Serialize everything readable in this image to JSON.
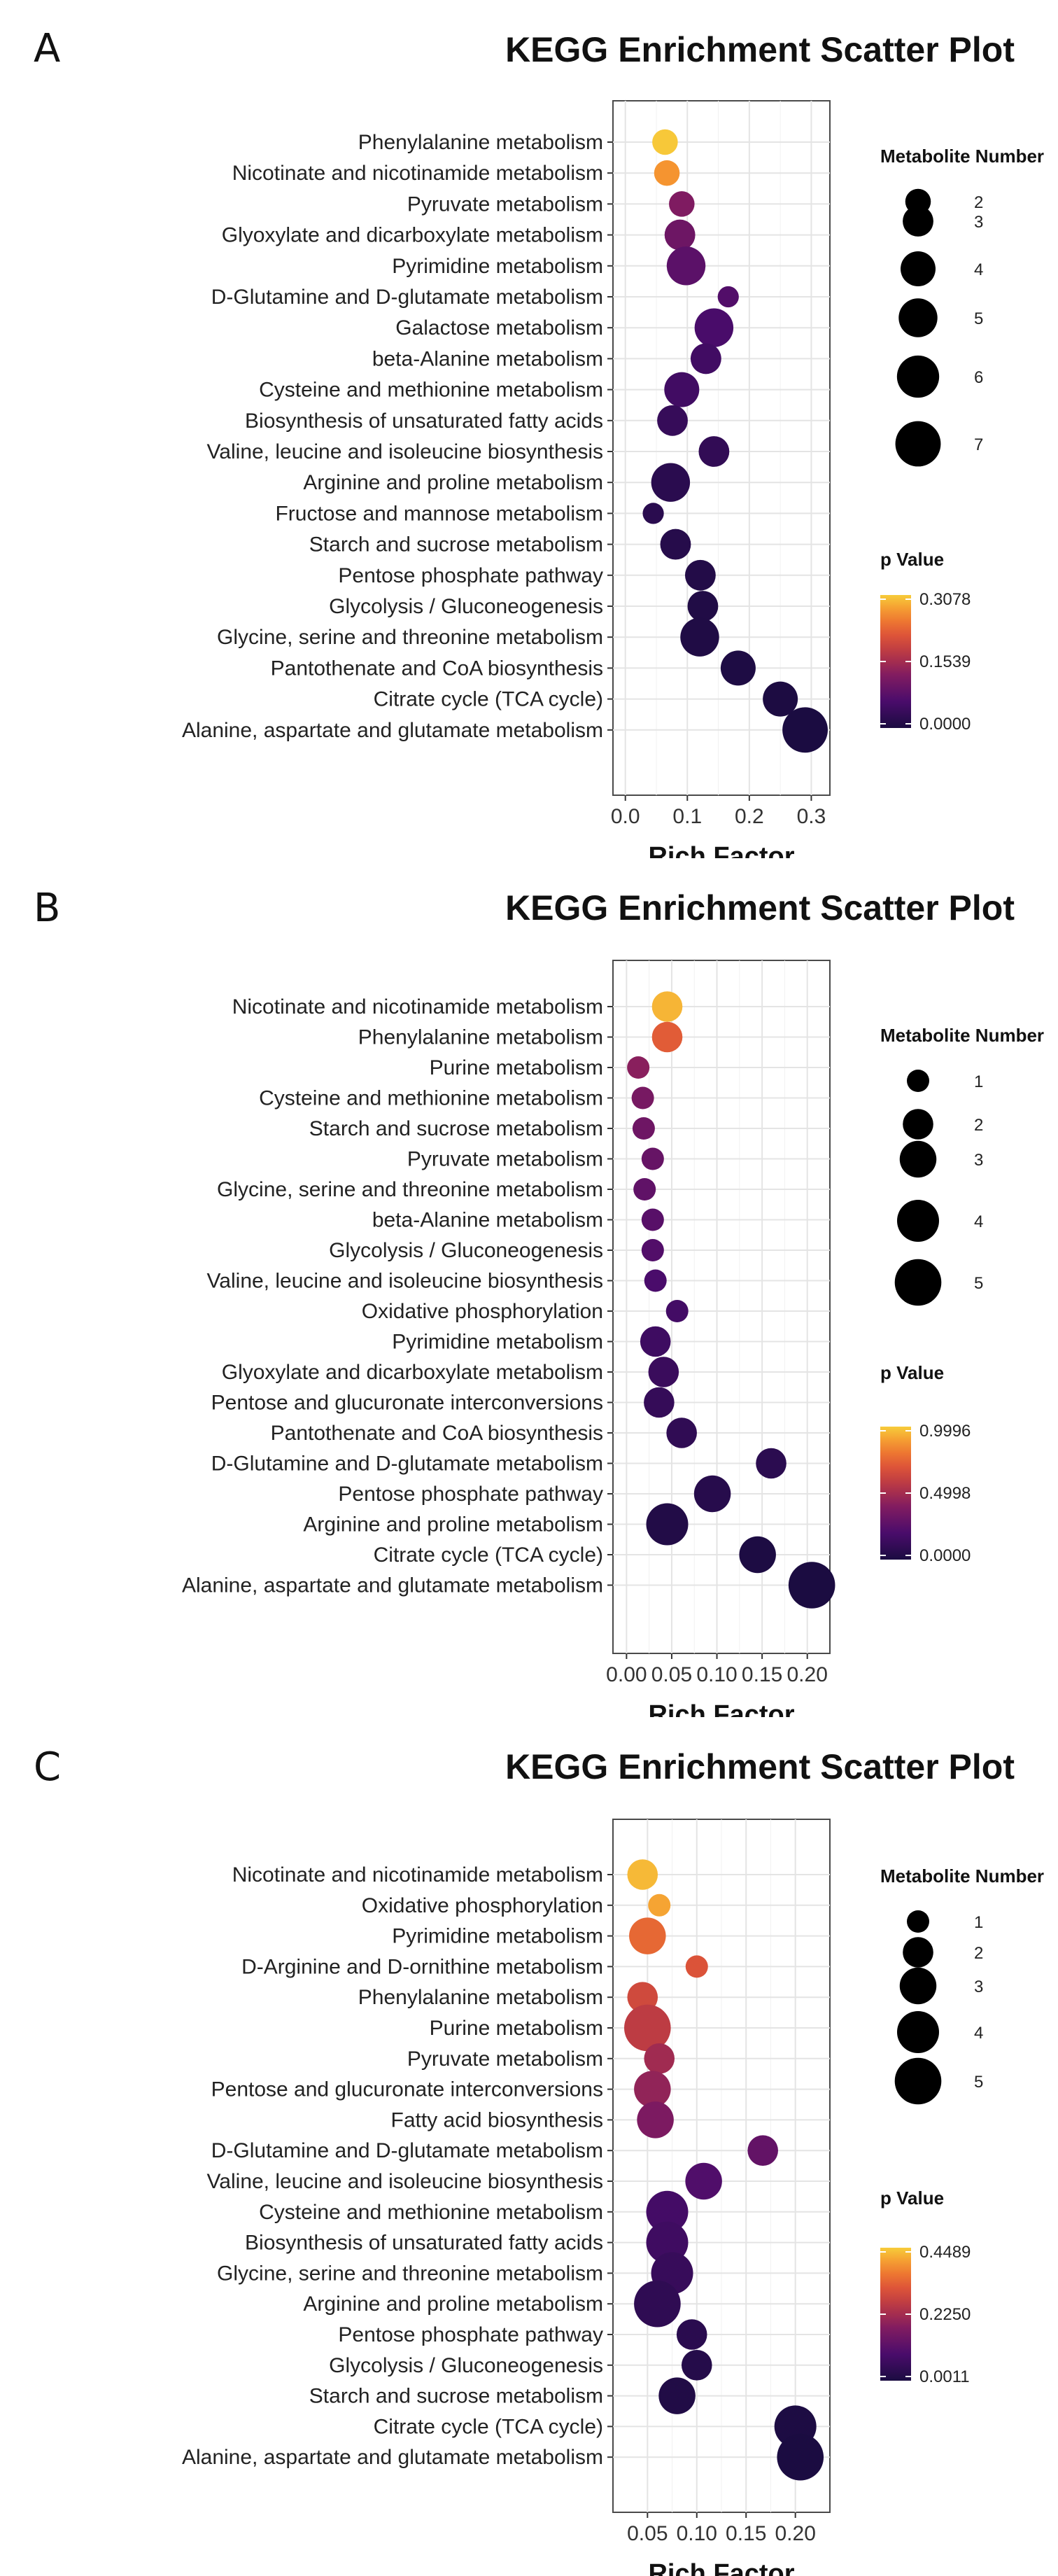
{
  "chart_data": [
    {
      "type": "scatter",
      "panel": "A",
      "title": "KEGG Enrichment Scatter Plot",
      "xlabel": "Rich Factor",
      "ylabel": "",
      "xlim": [
        -0.02,
        0.33
      ],
      "xticks": [
        0.0,
        0.1,
        0.2,
        0.3
      ],
      "xtick_labels": [
        "0.0",
        "0.1",
        "0.2",
        "0.3"
      ],
      "grid": true,
      "size_legend": {
        "title": "Metabolite Number",
        "values": [
          2,
          3,
          4,
          5,
          6,
          7
        ]
      },
      "color_legend": {
        "title": "p Value",
        "min": 0.0,
        "max": 0.3078,
        "tick_labels": [
          "0.3078",
          "0.1539",
          "0.0000"
        ]
      },
      "points": [
        {
          "pathway": "Phenylalanine metabolism",
          "rich_factor": 0.064,
          "count": 2,
          "p": 0.305
        },
        {
          "pathway": "Nicotinate and nicotinamide metabolism",
          "rich_factor": 0.067,
          "count": 2,
          "p": 0.27
        },
        {
          "pathway": "Pyruvate metabolism",
          "rich_factor": 0.091,
          "count": 2,
          "p": 0.12
        },
        {
          "pathway": "Glyoxylate and dicarboxylate metabolism",
          "rich_factor": 0.088,
          "count": 3,
          "p": 0.1
        },
        {
          "pathway": "Pyrimidine metabolism",
          "rich_factor": 0.098,
          "count": 5,
          "p": 0.08
        },
        {
          "pathway": "D-Glutamine and D-glutamate metabolism",
          "rich_factor": 0.166,
          "count": 1.3,
          "p": 0.07
        },
        {
          "pathway": "Galactose metabolism",
          "rich_factor": 0.143,
          "count": 5,
          "p": 0.06
        },
        {
          "pathway": "beta-Alanine metabolism",
          "rich_factor": 0.13,
          "count": 3,
          "p": 0.05
        },
        {
          "pathway": "Cysteine and methionine metabolism",
          "rich_factor": 0.091,
          "count": 4,
          "p": 0.05
        },
        {
          "pathway": "Biosynthesis of unsaturated fatty acids",
          "rich_factor": 0.076,
          "count": 3,
          "p": 0.035
        },
        {
          "pathway": "Valine, leucine and isoleucine biosynthesis",
          "rich_factor": 0.143,
          "count": 3,
          "p": 0.03
        },
        {
          "pathway": "Arginine and proline metabolism",
          "rich_factor": 0.073,
          "count": 5,
          "p": 0.02
        },
        {
          "pathway": "Fructose and mannose metabolism",
          "rich_factor": 0.045,
          "count": 1.3,
          "p": 0.02
        },
        {
          "pathway": "Starch and sucrose metabolism",
          "rich_factor": 0.081,
          "count": 3,
          "p": 0.015
        },
        {
          "pathway": "Pentose phosphate pathway",
          "rich_factor": 0.121,
          "count": 3,
          "p": 0.01
        },
        {
          "pathway": "Glycolysis / Gluconeogenesis",
          "rich_factor": 0.125,
          "count": 3,
          "p": 0.008
        },
        {
          "pathway": "Glycine, serine and threonine metabolism",
          "rich_factor": 0.12,
          "count": 5,
          "p": 0.006
        },
        {
          "pathway": "Pantothenate and CoA biosynthesis",
          "rich_factor": 0.182,
          "count": 4,
          "p": 0.004
        },
        {
          "pathway": "Citrate cycle (TCA cycle)",
          "rich_factor": 0.25,
          "count": 4,
          "p": 0.002
        },
        {
          "pathway": "Alanine, aspartate and glutamate metabolism",
          "rich_factor": 0.29,
          "count": 7,
          "p": 0.0001
        }
      ]
    },
    {
      "type": "scatter",
      "panel": "B",
      "title": "KEGG Enrichment Scatter Plot",
      "xlabel": "Rich Factor",
      "ylabel": "",
      "xlim": [
        -0.015,
        0.225
      ],
      "xticks": [
        0.0,
        0.05,
        0.1,
        0.15,
        0.2
      ],
      "xtick_labels": [
        "0.00",
        "0.05",
        "0.10",
        "0.15",
        "0.20"
      ],
      "grid": true,
      "size_legend": {
        "title": "Metabolite Number",
        "values": [
          1,
          2,
          3,
          4,
          5
        ]
      },
      "color_legend": {
        "title": "p Value",
        "min": 0.0,
        "max": 0.9996,
        "tick_labels": [
          "0.9996",
          "0.4998",
          "0.0000"
        ]
      },
      "points": [
        {
          "pathway": "Nicotinate and nicotinamide metabolism",
          "rich_factor": 0.045,
          "count": 2,
          "p": 0.95
        },
        {
          "pathway": "Phenylalanine metabolism",
          "rich_factor": 0.045,
          "count": 2,
          "p": 0.72
        },
        {
          "pathway": "Purine metabolism",
          "rich_factor": 0.013,
          "count": 1,
          "p": 0.42
        },
        {
          "pathway": "Cysteine and methionine metabolism",
          "rich_factor": 0.018,
          "count": 1,
          "p": 0.36
        },
        {
          "pathway": "Starch and sucrose metabolism",
          "rich_factor": 0.019,
          "count": 1,
          "p": 0.33
        },
        {
          "pathway": "Pyruvate metabolism",
          "rich_factor": 0.029,
          "count": 1,
          "p": 0.3
        },
        {
          "pathway": "Glycine, serine and threonine metabolism",
          "rich_factor": 0.02,
          "count": 1,
          "p": 0.28
        },
        {
          "pathway": "beta-Alanine metabolism",
          "rich_factor": 0.029,
          "count": 1,
          "p": 0.25
        },
        {
          "pathway": "Glycolysis / Gluconeogenesis",
          "rich_factor": 0.029,
          "count": 1,
          "p": 0.23
        },
        {
          "pathway": "Valine, leucine and isoleucine biosynthesis",
          "rich_factor": 0.032,
          "count": 1,
          "p": 0.2
        },
        {
          "pathway": "Oxidative phosphorylation",
          "rich_factor": 0.056,
          "count": 1,
          "p": 0.17
        },
        {
          "pathway": "Pyrimidine metabolism",
          "rich_factor": 0.032,
          "count": 2,
          "p": 0.15
        },
        {
          "pathway": "Glyoxylate and dicarboxylate metabolism",
          "rich_factor": 0.041,
          "count": 2,
          "p": 0.13
        },
        {
          "pathway": "Pentose and glucuronate interconversions",
          "rich_factor": 0.036,
          "count": 2,
          "p": 0.11
        },
        {
          "pathway": "Pantothenate and CoA biosynthesis",
          "rich_factor": 0.061,
          "count": 2,
          "p": 0.09
        },
        {
          "pathway": "D-Glutamine and D-glutamate metabolism",
          "rich_factor": 0.16,
          "count": 2,
          "p": 0.07
        },
        {
          "pathway": "Pentose phosphate pathway",
          "rich_factor": 0.095,
          "count": 3,
          "p": 0.05
        },
        {
          "pathway": "Arginine and proline metabolism",
          "rich_factor": 0.045,
          "count": 4,
          "p": 0.03
        },
        {
          "pathway": "Citrate cycle (TCA cycle)",
          "rich_factor": 0.145,
          "count": 3,
          "p": 0.01
        },
        {
          "pathway": "Alanine, aspartate and glutamate metabolism",
          "rich_factor": 0.205,
          "count": 5,
          "p": 0.0001
        }
      ]
    },
    {
      "type": "scatter",
      "panel": "C",
      "title": "KEGG Enrichment Scatter Plot",
      "xlabel": "Rich Factor",
      "ylabel": "",
      "xlim": [
        0.015,
        0.235
      ],
      "xticks": [
        0.05,
        0.1,
        0.15,
        0.2
      ],
      "xtick_labels": [
        "0.05",
        "0.10",
        "0.15",
        "0.20"
      ],
      "grid": true,
      "size_legend": {
        "title": "Metabolite Number",
        "values": [
          1,
          2,
          3,
          4,
          5
        ]
      },
      "color_legend": {
        "title": "p Value",
        "min": 0.0011,
        "max": 0.4489,
        "tick_labels": [
          "0.4489",
          "0.2250",
          "0.0011"
        ]
      },
      "points": [
        {
          "pathway": "Nicotinate and nicotinamide metabolism",
          "rich_factor": 0.045,
          "count": 2,
          "p": 0.43
        },
        {
          "pathway": "Oxidative phosphorylation",
          "rich_factor": 0.062,
          "count": 1,
          "p": 0.41
        },
        {
          "pathway": "Pyrimidine metabolism",
          "rich_factor": 0.05,
          "count": 3,
          "p": 0.34
        },
        {
          "pathway": "D-Arginine and D-ornithine metabolism",
          "rich_factor": 0.1,
          "count": 1,
          "p": 0.31
        },
        {
          "pathway": "Phenylalanine metabolism",
          "rich_factor": 0.045,
          "count": 2,
          "p": 0.29
        },
        {
          "pathway": "Purine metabolism",
          "rich_factor": 0.05,
          "count": 5,
          "p": 0.26
        },
        {
          "pathway": "Pyruvate metabolism",
          "rich_factor": 0.062,
          "count": 2,
          "p": 0.22
        },
        {
          "pathway": "Pentose and glucuronate interconversions",
          "rich_factor": 0.055,
          "count": 3,
          "p": 0.2
        },
        {
          "pathway": "Fatty acid biosynthesis",
          "rich_factor": 0.058,
          "count": 3,
          "p": 0.17
        },
        {
          "pathway": "D-Glutamine and D-glutamate metabolism",
          "rich_factor": 0.167,
          "count": 2,
          "p": 0.13
        },
        {
          "pathway": "Valine, leucine and isoleucine biosynthesis",
          "rich_factor": 0.107,
          "count": 3,
          "p": 0.1
        },
        {
          "pathway": "Cysteine and methionine metabolism",
          "rich_factor": 0.07,
          "count": 4,
          "p": 0.08
        },
        {
          "pathway": "Biosynthesis of unsaturated fatty acids",
          "rich_factor": 0.07,
          "count": 4,
          "p": 0.07
        },
        {
          "pathway": "Glycine, serine and threonine metabolism",
          "rich_factor": 0.075,
          "count": 4,
          "p": 0.055
        },
        {
          "pathway": "Arginine and proline metabolism",
          "rich_factor": 0.06,
          "count": 5,
          "p": 0.04
        },
        {
          "pathway": "Pentose phosphate pathway",
          "rich_factor": 0.095,
          "count": 2,
          "p": 0.03
        },
        {
          "pathway": "Glycolysis / Gluconeogenesis",
          "rich_factor": 0.1,
          "count": 2,
          "p": 0.02
        },
        {
          "pathway": "Starch and sucrose metabolism",
          "rich_factor": 0.08,
          "count": 3,
          "p": 0.012
        },
        {
          "pathway": "Citrate cycle (TCA cycle)",
          "rich_factor": 0.2,
          "count": 4,
          "p": 0.005
        },
        {
          "pathway": "Alanine, aspartate and glutamate metabolism",
          "rich_factor": 0.205,
          "count": 5,
          "p": 0.0011
        }
      ]
    }
  ]
}
